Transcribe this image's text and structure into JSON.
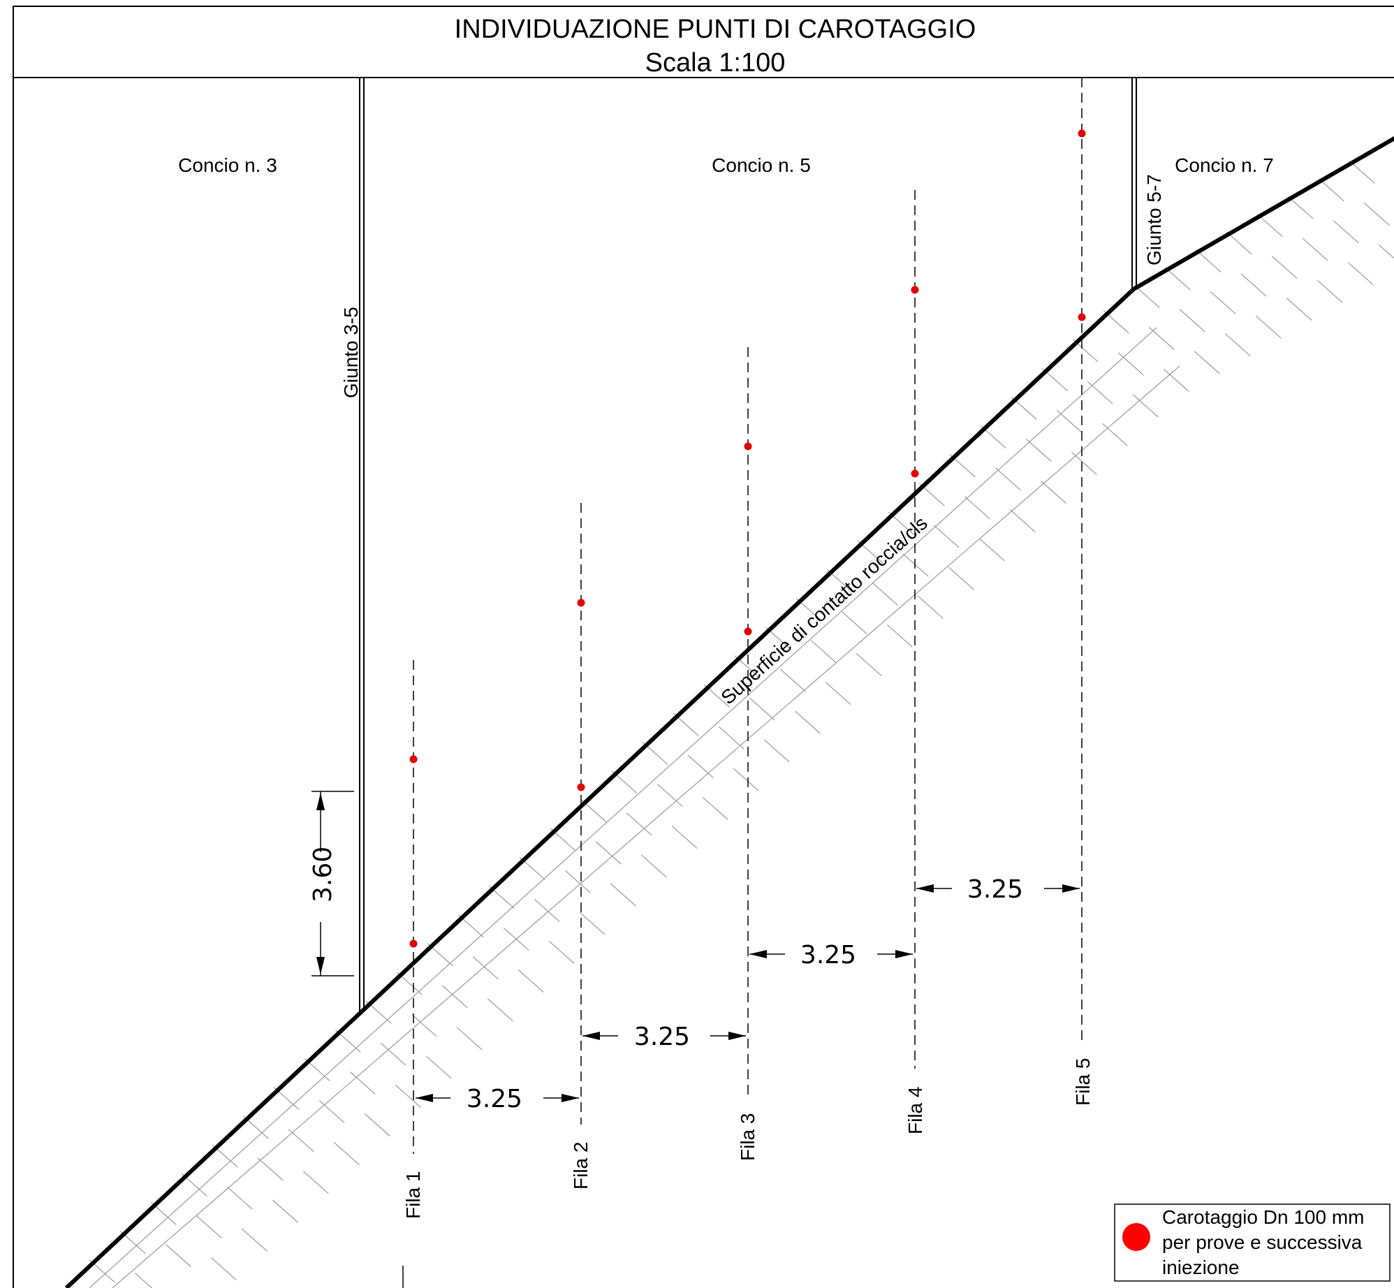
{
  "title": {
    "line1": "INDIVIDUAZIONE PUNTI DI CAROTAGGIO",
    "line2": "Scala 1:100"
  },
  "segments": {
    "concio3": "Concio n. 3",
    "concio5": "Concio n. 5",
    "concio7": "Concio n. 7"
  },
  "joints": {
    "giunto35": "Giunto 3-5",
    "giunto57": "Giunto 5-7"
  },
  "surface_label": "Superficie di contatto roccia/cls",
  "rows": {
    "fila1": "Fila 1",
    "fila2": "Fila 2",
    "fila3": "Fila 3",
    "fila4": "Fila 4",
    "fila5": "Fila 5"
  },
  "dimensions": {
    "vertical_spacing": "3.60",
    "row_spacing_1_2": "3.25",
    "row_spacing_2_3": "3.25",
    "row_spacing_3_4": "3.25",
    "row_spacing_4_5": "3.25"
  },
  "legend": {
    "line1": "Carotaggio Dn 100 mm",
    "line2": "per prove e successiva",
    "line3": "iniezione",
    "marker_color": "#ff0000"
  },
  "colors": {
    "line": "#000000",
    "hatch": "#999999",
    "core_point": "#e00000"
  }
}
